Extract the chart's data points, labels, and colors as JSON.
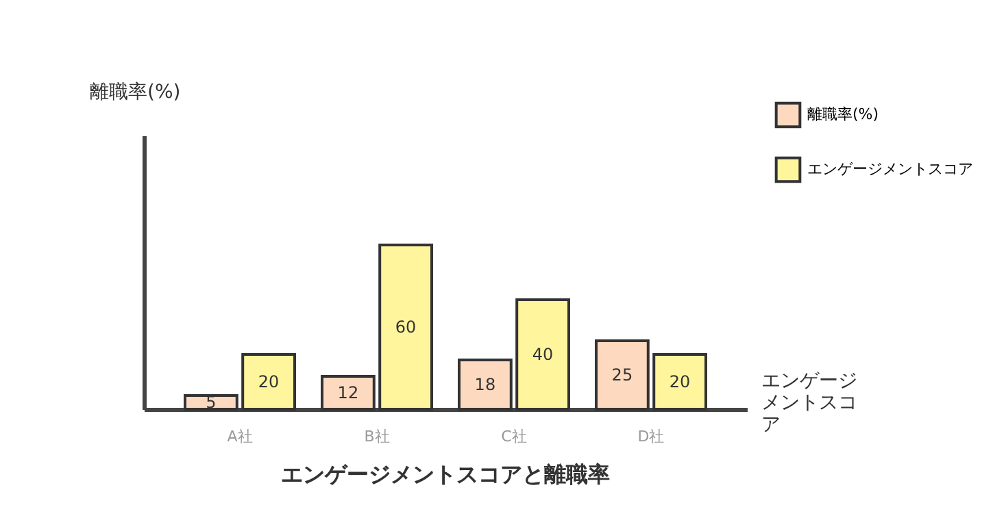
{
  "chart_data": {
    "type": "bar",
    "title": "エンゲージメントスコアと離職率",
    "xlabel": "エンゲージメントスコア",
    "ylabel": "離職率(%)",
    "categories": [
      "A社",
      "B社",
      "C社",
      "D社"
    ],
    "series": [
      {
        "name": "離職率(%)",
        "color": "#fdd9bf",
        "values": [
          5,
          12,
          18,
          25
        ]
      },
      {
        "name": "エンゲージメントスコア",
        "color": "#fff59d",
        "values": [
          20,
          60,
          40,
          20
        ]
      }
    ],
    "ylim": [
      0,
      100
    ],
    "data_labels": true,
    "legend": "top right",
    "grid": false,
    "tick_labels": "x"
  }
}
